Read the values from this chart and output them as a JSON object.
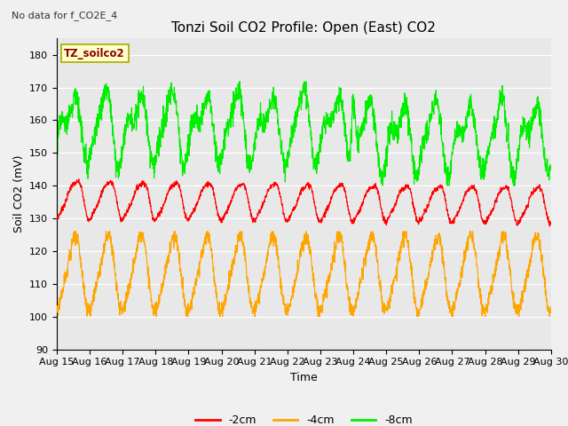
{
  "title": "Tonzi Soil CO2 Profile: Open (East) CO2",
  "note": "No data for f_CO2E_4",
  "ylabel": "Soil CO2 (mV)",
  "xlabel": "Time",
  "ylim": [
    90,
    185
  ],
  "yticks": [
    90,
    100,
    110,
    120,
    130,
    140,
    150,
    160,
    170,
    180
  ],
  "x_tick_labels": [
    "Aug 15",
    "Aug 16",
    "Aug 17",
    "Aug 18",
    "Aug 19",
    "Aug 20",
    "Aug 21",
    "Aug 22",
    "Aug 23",
    "Aug 24",
    "Aug 25",
    "Aug 26",
    "Aug 27",
    "Aug 28",
    "Aug 29",
    "Aug 30"
  ],
  "series_red": {
    "color": "#ff0000",
    "label": "-2cm"
  },
  "series_orange": {
    "color": "#ffa500",
    "label": "-4cm"
  },
  "series_green": {
    "color": "#00ee00",
    "label": "-8cm"
  },
  "bg_color": "#f0f0f0",
  "plot_bg": "#e8e8e8",
  "legend_box_color": "#ffffcc",
  "legend_box_label": "TZ_soilco2",
  "title_fontsize": 11,
  "axis_label_fontsize": 9,
  "tick_fontsize": 8
}
